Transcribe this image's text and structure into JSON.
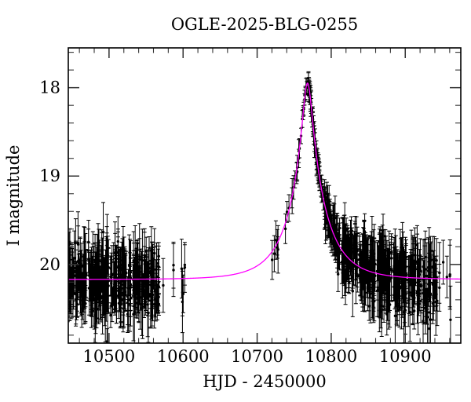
{
  "window": {
    "background": "#ffffff"
  },
  "chart_data": {
    "type": "scatter",
    "title": "OGLE-2025-BLG-0255",
    "xlabel": "HJD - 2450000",
    "ylabel": "I magnitude",
    "x_range": [
      10445,
      10975
    ],
    "y_range_mag": [
      17.55,
      20.89
    ],
    "y_axis_inverted_brighter_up": true,
    "x_major_ticks": [
      10500,
      10600,
      10700,
      10800,
      10900
    ],
    "x_minor_tick_step": 20,
    "y_major_ticks": [
      18,
      19,
      20
    ],
    "y_minor_tick_step": 0.2,
    "grid": false,
    "legend": null,
    "colors": {
      "data_points": "#000000",
      "error_bars": "#000000",
      "model_curve": "#ff00ff",
      "frame": "#000000",
      "ticks": "#333333"
    },
    "model": {
      "name": "paczynski-microlensing",
      "t0": 10768,
      "tE": 48,
      "u0": 0.13,
      "I_baseline": 20.17,
      "I_peak": 17.95
    },
    "model_curve_readings": [
      [
        10446,
        20.17
      ],
      [
        10600,
        20.15
      ],
      [
        10700,
        20.04
      ],
      [
        10727,
        19.74
      ],
      [
        10752,
        19.01
      ],
      [
        10768,
        17.95
      ],
      [
        10783,
        18.95
      ],
      [
        10804,
        19.66
      ],
      [
        10850,
        20.0
      ],
      [
        10900,
        20.1
      ],
      [
        10974,
        20.16
      ]
    ],
    "random_seed": 42,
    "point_style": {
      "radius": 1.7,
      "error_cap_halfwidth": 2.5
    },
    "observation_windows": [
      {
        "t_start": 10444,
        "t_end": 10470,
        "n": 85,
        "sigma": 0.18,
        "err_min": 0.12,
        "err_max": 0.38
      },
      {
        "t_start": 10472,
        "t_end": 10500,
        "n": 95,
        "sigma": 0.18,
        "err_min": 0.12,
        "err_max": 0.38
      },
      {
        "t_start": 10502,
        "t_end": 10530,
        "n": 85,
        "sigma": 0.18,
        "err_min": 0.12,
        "err_max": 0.38
      },
      {
        "t_start": 10532,
        "t_end": 10555,
        "n": 70,
        "sigma": 0.18,
        "err_min": 0.12,
        "err_max": 0.38
      },
      {
        "t_start": 10556,
        "t_end": 10568,
        "n": 40,
        "sigma": 0.18,
        "err_min": 0.12,
        "err_max": 0.38
      },
      {
        "t_start": 10573,
        "t_end": 10575,
        "n": 1,
        "sigma": 0.1,
        "err_min": 0.3,
        "err_max": 0.4
      },
      {
        "t_start": 10586,
        "t_end": 10589,
        "n": 2,
        "sigma": 0.12,
        "err_min": 0.25,
        "err_max": 0.35
      },
      {
        "t_start": 10598,
        "t_end": 10603,
        "n": 6,
        "sigma": 0.22,
        "err_min": 0.2,
        "err_max": 0.35
      },
      {
        "t_start": 10716,
        "t_end": 10732,
        "n": 6,
        "sigma": 0.08,
        "err_min": 0.12,
        "err_max": 0.28
      },
      {
        "t_start": 10736,
        "t_end": 10748,
        "n": 5,
        "sigma": 0.05,
        "err_min": 0.1,
        "err_max": 0.2
      },
      {
        "t_start": 10749,
        "t_end": 10761,
        "n": 9,
        "sigma": 0.04,
        "err_min": 0.07,
        "err_max": 0.14
      },
      {
        "t_start": 10761,
        "t_end": 10769,
        "n": 12,
        "sigma": 0.03,
        "err_min": 0.05,
        "err_max": 0.1
      },
      {
        "t_start": 10769,
        "t_end": 10790,
        "n": 65,
        "sigma": 0.04,
        "err_min": 0.05,
        "err_max": 0.15
      },
      {
        "t_start": 10791,
        "t_end": 10812,
        "n": 70,
        "sigma": 0.1,
        "err_min": 0.1,
        "err_max": 0.25
      },
      {
        "t_start": 10814,
        "t_end": 10836,
        "n": 80,
        "sigma": 0.16,
        "err_min": 0.12,
        "err_max": 0.3
      },
      {
        "t_start": 10838,
        "t_end": 10860,
        "n": 80,
        "sigma": 0.18,
        "err_min": 0.15,
        "err_max": 0.35
      },
      {
        "t_start": 10862,
        "t_end": 10882,
        "n": 75,
        "sigma": 0.18,
        "err_min": 0.15,
        "err_max": 0.35
      },
      {
        "t_start": 10884,
        "t_end": 10902,
        "n": 65,
        "sigma": 0.18,
        "err_min": 0.15,
        "err_max": 0.35
      },
      {
        "t_start": 10904,
        "t_end": 10922,
        "n": 55,
        "sigma": 0.18,
        "err_min": 0.15,
        "err_max": 0.35
      },
      {
        "t_start": 10924,
        "t_end": 10944,
        "n": 50,
        "sigma": 0.2,
        "err_min": 0.15,
        "err_max": 0.38
      },
      {
        "t_start": 10946,
        "t_end": 10952,
        "n": 3,
        "sigma": 0.22,
        "err_min": 0.2,
        "err_max": 0.4
      },
      {
        "t_start": 10954,
        "t_end": 10963,
        "n": 4,
        "sigma": 0.25,
        "err_min": 0.2,
        "err_max": 0.4
      }
    ]
  }
}
